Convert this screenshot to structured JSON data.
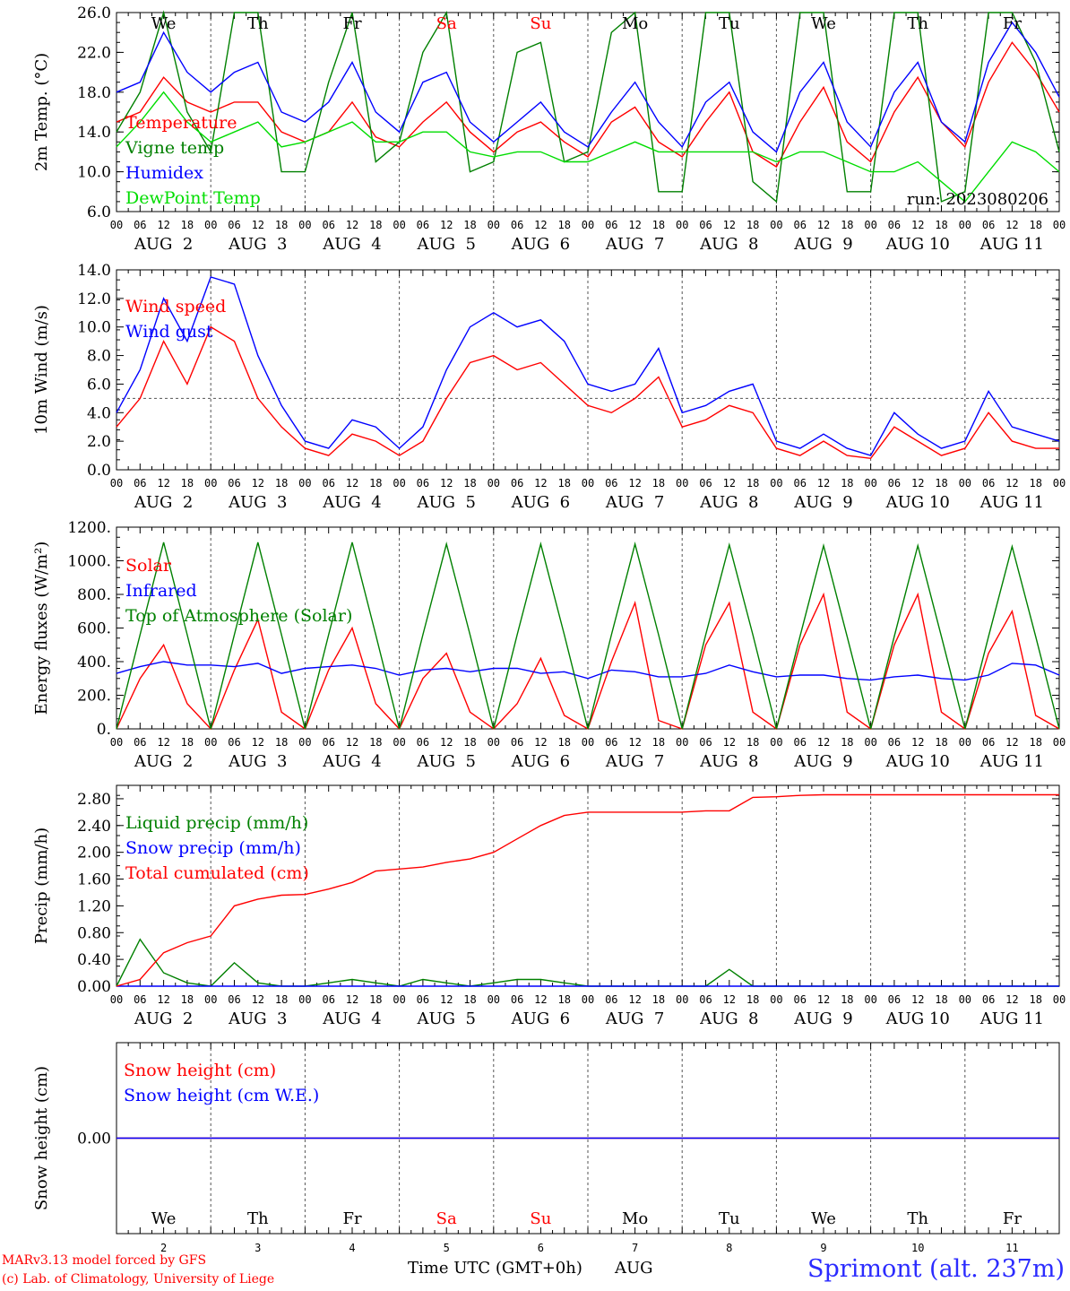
{
  "chart_data": [
    {
      "panel": "temperature",
      "type": "line",
      "ylabel": "2m Temp. (°C)",
      "ylim": [
        6,
        26
      ],
      "yticks": [
        "26.0",
        "22.0",
        "18.0",
        "14.0",
        "10.0",
        "6.0"
      ],
      "ytick_values": [
        26,
        22,
        18,
        14,
        10,
        6
      ],
      "reference_line": null,
      "annotation": "run: 2023080206",
      "x_hours": [
        0,
        6,
        12,
        18,
        24,
        30,
        36,
        42,
        48,
        54,
        60,
        66,
        72,
        78,
        84,
        90,
        96,
        102,
        108,
        114,
        120,
        126,
        132,
        138,
        144,
        150,
        156,
        162,
        168,
        174,
        180,
        186,
        192,
        198,
        204,
        210,
        216,
        222,
        228,
        234,
        240
      ],
      "series": [
        {
          "name": "Temperature",
          "color": "#ff0000",
          "values": [
            15,
            16,
            19.5,
            17,
            16,
            17,
            17,
            14,
            13,
            14,
            17,
            13.5,
            12.5,
            15,
            17,
            14,
            12,
            14,
            15,
            13,
            11.5,
            15,
            16.5,
            13,
            11.5,
            15,
            18,
            12,
            10.5,
            15,
            18.5,
            13,
            11,
            16,
            19.5,
            15,
            12.5,
            19,
            23,
            20,
            16
          ]
        },
        {
          "name": "Vigne temp",
          "color": "#008000",
          "values": [
            14,
            18,
            26,
            16,
            12,
            26,
            26,
            10,
            10,
            19,
            26,
            11,
            13,
            22,
            26,
            10,
            11,
            22,
            23,
            11,
            12,
            24,
            26,
            8,
            8,
            26,
            26,
            9,
            7,
            26,
            26,
            8,
            8,
            26,
            26,
            7,
            8,
            26,
            26,
            21,
            12
          ]
        },
        {
          "name": "Humidex",
          "color": "#0000ff",
          "values": [
            18,
            19,
            24,
            20,
            18,
            20,
            21,
            16,
            15,
            17,
            21,
            16,
            14,
            19,
            20,
            15,
            13,
            15,
            17,
            14,
            12.5,
            16,
            19,
            15,
            12.5,
            17,
            19,
            14,
            12,
            18,
            21,
            15,
            12.5,
            18,
            21,
            15,
            13,
            21,
            25,
            22,
            17.5
          ]
        },
        {
          "name": "DewPoint Temp",
          "color": "#00dd00",
          "values": [
            12.5,
            15,
            18,
            15,
            13,
            14,
            15,
            12.5,
            13,
            14,
            15,
            13,
            13,
            14,
            14,
            12,
            11.5,
            12,
            12,
            11,
            11,
            12,
            13,
            12,
            12,
            12,
            12,
            12,
            11,
            12,
            12,
            11,
            10,
            10,
            11,
            9,
            7,
            10,
            13,
            12,
            10
          ]
        }
      ]
    },
    {
      "panel": "wind",
      "type": "line",
      "ylabel": "10m Wind (m/s)",
      "ylim": [
        0,
        14
      ],
      "yticks": [
        "14.0",
        "12.0",
        "10.0",
        "8.0",
        "6.0",
        "4.0",
        "2.0",
        "0.0"
      ],
      "ytick_values": [
        14,
        12,
        10,
        8,
        6,
        4,
        2,
        0
      ],
      "reference_line": 5.0,
      "x_hours": [
        0,
        6,
        12,
        18,
        24,
        30,
        36,
        42,
        48,
        54,
        60,
        66,
        72,
        78,
        84,
        90,
        96,
        102,
        108,
        114,
        120,
        126,
        132,
        138,
        144,
        150,
        156,
        162,
        168,
        174,
        180,
        186,
        192,
        198,
        204,
        210,
        216,
        222,
        228,
        234,
        240
      ],
      "series": [
        {
          "name": "Wind speed",
          "color": "#ff0000",
          "values": [
            3,
            5,
            9,
            6,
            10,
            9,
            5,
            3,
            1.5,
            1,
            2.5,
            2,
            1,
            2,
            5,
            7.5,
            8,
            7,
            7.5,
            6,
            4.5,
            4,
            5,
            6.5,
            3,
            3.5,
            4.5,
            4,
            1.5,
            1,
            2,
            1,
            0.8,
            3,
            2,
            1,
            1.5,
            4,
            2,
            1.5,
            1.5
          ]
        },
        {
          "name": "Wind gust",
          "color": "#0000ff",
          "values": [
            4,
            7,
            12,
            9,
            13.5,
            13,
            8,
            4.5,
            2,
            1.5,
            3.5,
            3,
            1.5,
            3,
            7,
            10,
            11,
            10,
            10.5,
            9,
            6,
            5.5,
            6,
            8.5,
            4,
            4.5,
            5.5,
            6,
            2,
            1.5,
            2.5,
            1.5,
            1,
            4,
            2.5,
            1.5,
            2,
            5.5,
            3,
            2.5,
            2
          ]
        }
      ]
    },
    {
      "panel": "energy",
      "type": "line",
      "ylabel": "Energy fluxes (W/m²)",
      "ylim": [
        0,
        1200
      ],
      "yticks": [
        "1200.",
        "1000.",
        "800.",
        "600.",
        "400.",
        "200.",
        "0."
      ],
      "ytick_values": [
        1200,
        1000,
        800,
        600,
        400,
        200,
        0
      ],
      "reference_line": null,
      "x_hours": [
        0,
        6,
        12,
        18,
        24,
        30,
        36,
        42,
        48,
        54,
        60,
        66,
        72,
        78,
        84,
        90,
        96,
        102,
        108,
        114,
        120,
        126,
        132,
        138,
        144,
        150,
        156,
        162,
        168,
        174,
        180,
        186,
        192,
        198,
        204,
        210,
        216,
        222,
        228,
        234,
        240
      ],
      "series": [
        {
          "name": "Solar",
          "color": "#ff0000",
          "values": [
            0,
            300,
            500,
            150,
            0,
            350,
            650,
            100,
            0,
            350,
            600,
            150,
            0,
            300,
            450,
            100,
            0,
            150,
            420,
            80,
            0,
            400,
            750,
            50,
            0,
            500,
            750,
            100,
            0,
            500,
            800,
            100,
            0,
            500,
            800,
            100,
            0,
            450,
            700,
            80,
            0
          ]
        },
        {
          "name": "Infrared",
          "color": "#0000ff",
          "values": [
            330,
            370,
            400,
            380,
            380,
            370,
            390,
            330,
            360,
            370,
            380,
            360,
            320,
            350,
            360,
            340,
            360,
            360,
            330,
            340,
            300,
            350,
            340,
            310,
            310,
            330,
            380,
            340,
            310,
            320,
            320,
            300,
            290,
            310,
            320,
            300,
            290,
            320,
            390,
            380,
            320
          ]
        },
        {
          "name": "Top of Atmosphere (Solar)",
          "color": "#008000",
          "values": [
            0,
            560,
            1110,
            560,
            0,
            560,
            1110,
            560,
            0,
            560,
            1110,
            560,
            0,
            560,
            1100,
            560,
            0,
            560,
            1100,
            560,
            0,
            560,
            1100,
            560,
            0,
            560,
            1095,
            560,
            0,
            550,
            1090,
            550,
            0,
            550,
            1090,
            550,
            0,
            550,
            1085,
            550,
            0
          ]
        }
      ]
    },
    {
      "panel": "precip",
      "type": "line",
      "ylabel": "Precip (mm/h)",
      "ylim": [
        0,
        3.0
      ],
      "yticks": [
        "2.80",
        "2.40",
        "2.00",
        "1.60",
        "1.20",
        "0.80",
        "0.40",
        "0.00"
      ],
      "ytick_values": [
        2.8,
        2.4,
        2.0,
        1.6,
        1.2,
        0.8,
        0.4,
        0.0
      ],
      "reference_line": null,
      "x_hours": [
        0,
        6,
        12,
        18,
        24,
        30,
        36,
        42,
        48,
        54,
        60,
        66,
        72,
        78,
        84,
        90,
        96,
        102,
        108,
        114,
        120,
        126,
        132,
        138,
        144,
        150,
        156,
        162,
        168,
        174,
        180,
        186,
        192,
        198,
        204,
        210,
        216,
        222,
        228,
        234,
        240
      ],
      "series": [
        {
          "name": "Liquid precip (mm/h)",
          "color": "#008000",
          "values": [
            0,
            0.7,
            0.2,
            0.05,
            0,
            0.35,
            0.05,
            0,
            0,
            0.05,
            0.1,
            0.05,
            0,
            0.1,
            0.05,
            0,
            0.05,
            0.1,
            0.1,
            0.05,
            0,
            0,
            0,
            0,
            0,
            0,
            0.25,
            0,
            0,
            0,
            0,
            0,
            0,
            0,
            0,
            0,
            0,
            0,
            0,
            0,
            0
          ]
        },
        {
          "name": "Snow precip (mm/h)",
          "color": "#0000ff",
          "values": [
            0,
            0,
            0,
            0,
            0,
            0,
            0,
            0,
            0,
            0,
            0,
            0,
            0,
            0,
            0,
            0,
            0,
            0,
            0,
            0,
            0,
            0,
            0,
            0,
            0,
            0,
            0,
            0,
            0,
            0,
            0,
            0,
            0,
            0,
            0,
            0,
            0,
            0,
            0,
            0,
            0
          ]
        },
        {
          "name": "Total cumulated (cm)",
          "color": "#ff0000",
          "values": [
            0,
            0.1,
            0.5,
            0.65,
            0.75,
            1.2,
            1.3,
            1.36,
            1.37,
            1.45,
            1.55,
            1.72,
            1.75,
            1.78,
            1.85,
            1.9,
            2.0,
            2.2,
            2.4,
            2.55,
            2.6,
            2.6,
            2.6,
            2.6,
            2.6,
            2.62,
            2.62,
            2.82,
            2.83,
            2.85,
            2.86,
            2.86,
            2.86,
            2.86,
            2.86,
            2.86,
            2.86,
            2.86,
            2.86,
            2.86,
            2.86
          ]
        }
      ]
    },
    {
      "panel": "snow",
      "type": "line",
      "ylabel": "Snow height (cm)",
      "ylim": [
        -1,
        1
      ],
      "yticks": [
        "0.00"
      ],
      "ytick_values": [
        0
      ],
      "reference_line": null,
      "x_hours": [
        0,
        240
      ],
      "series": [
        {
          "name": "Snow height (cm)",
          "color": "#ff0000",
          "values": [
            0,
            0
          ]
        },
        {
          "name": "Snow height (cm W.E.)",
          "color": "#0000ff",
          "values": [
            0,
            0
          ]
        }
      ]
    }
  ],
  "x_axis": {
    "hour_labels": [
      "00",
      "06",
      "12",
      "18"
    ],
    "end_label": "00",
    "day_labels": [
      "AUG  2",
      "AUG  3",
      "AUG  4",
      "AUG  5",
      "AUG  6",
      "AUG  7",
      "AUG  8",
      "AUG  9",
      "AUG 10",
      "AUG 11"
    ],
    "weekdays": [
      "We",
      "Th",
      "Fr",
      "Sa",
      "Su",
      "Mo",
      "Tu",
      "We",
      "Th",
      "Fr"
    ],
    "weekend_flags": [
      false,
      false,
      false,
      true,
      true,
      false,
      false,
      false,
      false,
      false
    ],
    "day_numbers": [
      "2",
      "3",
      "4",
      "5",
      "6",
      "7",
      "8",
      "9",
      "10",
      "11"
    ]
  },
  "colors": {
    "weekday": "#000000",
    "weekend": "#ff0000",
    "grid": "#555555"
  },
  "footer": {
    "model": "MARv3.13 model forced by GFS",
    "lab": "(c) Lab. of Climatology, University of Liege",
    "xlabel": "Time UTC (GMT+0h)",
    "month": "AUG",
    "station": "Sprimont (alt. 237m)"
  }
}
